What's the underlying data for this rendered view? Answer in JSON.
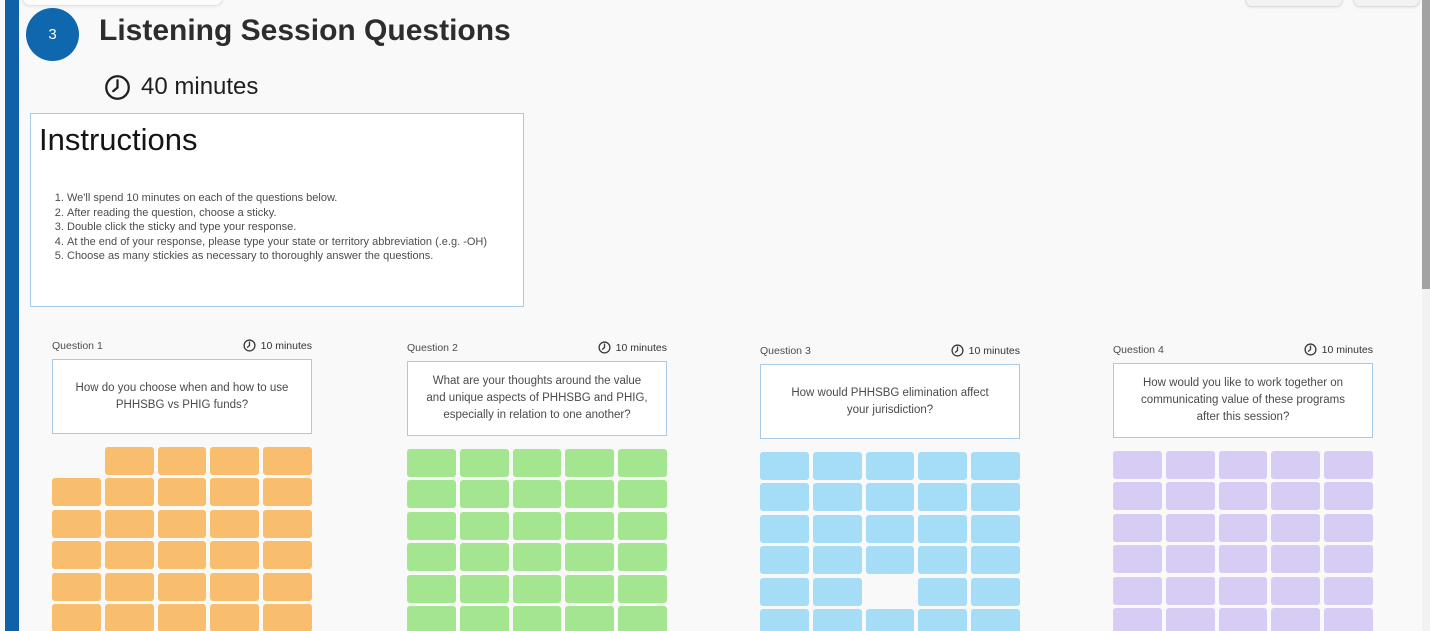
{
  "section": {
    "number": "3",
    "title": "Listening Session Questions",
    "duration": "40 minutes"
  },
  "instructions": {
    "title": "Instructions",
    "items": [
      "We'll spend 10 minutes on each of the questions below.",
      "After reading the question, choose a sticky.",
      "Double click the sticky and type your response.",
      "At the end of your response, please type your state or territory abbreviation (.e.g.  -OH)",
      "Choose as many stickies as necessary to thoroughly answer the questions."
    ]
  },
  "questions": [
    {
      "label": "Question 1",
      "duration": "10 minutes",
      "text": "How do you choose when and how to use PHHSBG vs PHIG funds?",
      "sticky_color": "#f8be6d",
      "grid": {
        "rows": 6,
        "cols": 5,
        "missing": [
          [
            0,
            0
          ]
        ]
      }
    },
    {
      "label": "Question 2",
      "duration": "10 minutes",
      "text": "What are your thoughts around the value and unique aspects of PHHSBG and PHIG, especially in relation to one another?",
      "sticky_color": "#a4e58f",
      "grid": {
        "rows": 6,
        "cols": 5,
        "missing": []
      }
    },
    {
      "label": "Question 3",
      "duration": "10 minutes",
      "text": "How would PHHSBG elimination affect your jurisdiction?",
      "sticky_color": "#a5dcf6",
      "grid": {
        "rows": 6,
        "cols": 5,
        "missing": [
          [
            4,
            2
          ]
        ]
      }
    },
    {
      "label": "Question 4",
      "duration": "10 minutes",
      "text": "How would you like to work together on communicating value of these programs after this session?",
      "sticky_color": "#d6ccf4",
      "grid": {
        "rows": 6,
        "cols": 5,
        "missing": []
      }
    }
  ],
  "colors": {
    "section_badge": "#0f67ae",
    "left_bar": "#1061a5",
    "box_border": "#a6cbe8",
    "sticky_orange": "#f8be6d",
    "sticky_green": "#a4e58f",
    "sticky_blue": "#a5dcf6",
    "sticky_purple": "#d6ccf4"
  }
}
